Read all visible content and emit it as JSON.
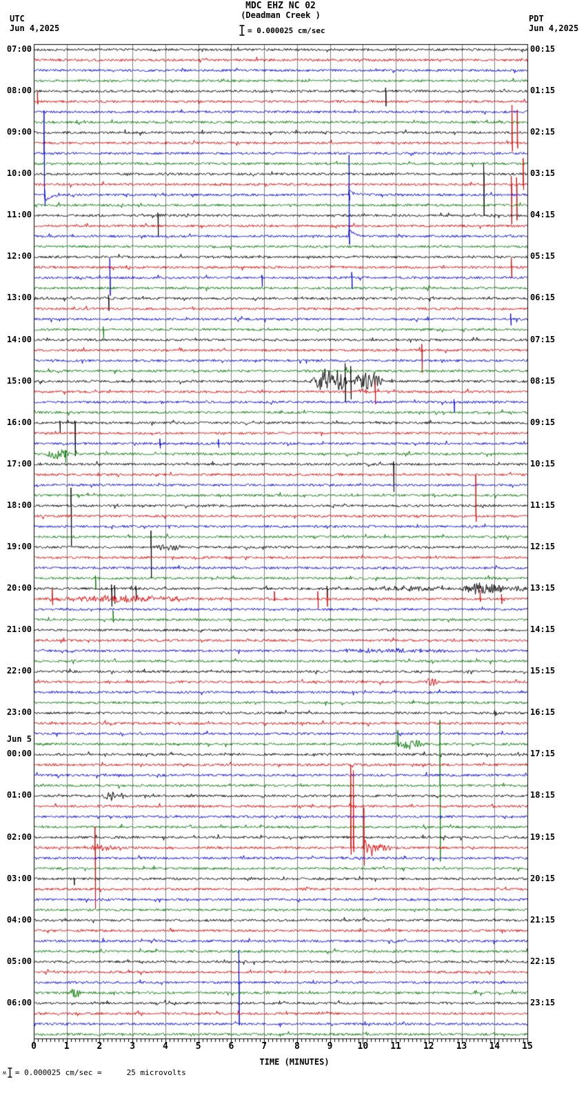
{
  "header": {
    "title": "MDC EHZ NC 02",
    "subtitle": "(Deadman Creek )",
    "scale_label": "= 0.000025 cm/sec",
    "left_tz": "UTC",
    "left_date": "Jun 4,2025",
    "right_tz": "PDT",
    "right_date": "Jun 4,2025"
  },
  "axis": {
    "xlabel": "TIME (MINUTES)",
    "minutes": [
      0,
      1,
      2,
      3,
      4,
      5,
      6,
      7,
      8,
      9,
      10,
      11,
      12,
      13,
      14,
      15
    ]
  },
  "footer": {
    "prefix": "ʍ",
    "text": "= 0.000025 cm/sec =",
    "value": "25 microvolts"
  },
  "chart_data": {
    "type": "line",
    "kind": "helicorder-seismogram",
    "station": "MDC EHZ NC 02 (Deadman Creek)",
    "x_range_minutes": [
      0,
      15
    ],
    "rows_per_hour": 4,
    "minutes_per_row": 15,
    "trace_colors": [
      "#000000",
      "#dd0000",
      "#0000dd",
      "#007700"
    ],
    "grid_color": "#7b7b7b",
    "noise_amp": 1.7,
    "hours": [
      {
        "utc": "07:00",
        "pdt": "00:15"
      },
      {
        "utc": "08:00",
        "pdt": "01:15"
      },
      {
        "utc": "09:00",
        "pdt": "02:15"
      },
      {
        "utc": "10:00",
        "pdt": "03:15"
      },
      {
        "utc": "11:00",
        "pdt": "04:15"
      },
      {
        "utc": "12:00",
        "pdt": "05:15"
      },
      {
        "utc": "13:00",
        "pdt": "06:15"
      },
      {
        "utc": "14:00",
        "pdt": "07:15"
      },
      {
        "utc": "15:00",
        "pdt": "08:15"
      },
      {
        "utc": "16:00",
        "pdt": "09:15"
      },
      {
        "utc": "17:00",
        "pdt": "10:15"
      },
      {
        "utc": "18:00",
        "pdt": "11:15"
      },
      {
        "utc": "19:00",
        "pdt": "12:15"
      },
      {
        "utc": "20:00",
        "pdt": "13:15"
      },
      {
        "utc": "21:00",
        "pdt": "14:15"
      },
      {
        "utc": "22:00",
        "pdt": "15:15"
      },
      {
        "utc": "23:00",
        "pdt": "16:15"
      },
      {
        "utc": "00:00",
        "pdt": "17:15"
      },
      {
        "utc": "01:00",
        "pdt": "18:15"
      },
      {
        "utc": "02:00",
        "pdt": "19:15"
      },
      {
        "utc": "03:00",
        "pdt": "20:15"
      },
      {
        "utc": "04:00",
        "pdt": "21:15"
      },
      {
        "utc": "05:00",
        "pdt": "22:15"
      },
      {
        "utc": "06:00",
        "pdt": "23:15"
      }
    ],
    "date_note": {
      "text": "Jun 5",
      "at_utc": "00:00"
    },
    "events": {
      "spikes": [
        {
          "r": 5,
          "t": 0.1,
          "u": 14,
          "d": 4
        },
        {
          "r": 10,
          "t": 0.3,
          "u": 62,
          "d": 58
        },
        {
          "r": 14,
          "t": 0.32,
          "u": 8,
          "d": 16,
          "tail": -10
        },
        {
          "r": 4,
          "t": 10.68,
          "u": 5,
          "d": 22
        },
        {
          "r": 9,
          "t": 14.52,
          "u": 55,
          "d": 12
        },
        {
          "r": 9,
          "t": 14.68,
          "u": 48,
          "d": 8
        },
        {
          "r": 13,
          "t": 14.5,
          "u": 12,
          "d": 58
        },
        {
          "r": 13,
          "t": 14.66,
          "u": 10,
          "d": 52
        },
        {
          "r": 13,
          "t": 14.86,
          "u": 38,
          "d": 8
        },
        {
          "r": 12,
          "t": 13.66,
          "u": 16,
          "d": 60
        },
        {
          "r": 14,
          "t": 9.57,
          "u": 14,
          "d": 8,
          "tail": 8
        },
        {
          "r": 18,
          "t": 9.57,
          "u": 118,
          "d": 12,
          "tail": 10
        },
        {
          "r": 16,
          "t": 3.76,
          "u": 4,
          "d": 30
        },
        {
          "r": 22,
          "t": 2.3,
          "u": 28,
          "d": 26
        },
        {
          "r": 22,
          "t": 6.92,
          "u": 4,
          "d": 13
        },
        {
          "r": 22,
          "t": 9.65,
          "u": 8,
          "d": 16
        },
        {
          "r": 21,
          "t": 14.5,
          "u": 13,
          "d": 15
        },
        {
          "r": 26,
          "t": 14.48,
          "u": 8,
          "d": 9
        },
        {
          "r": 24,
          "t": 2.26,
          "u": 5,
          "d": 18
        },
        {
          "r": 27,
          "t": 2.1,
          "u": 4,
          "d": 13
        },
        {
          "r": 29,
          "t": 11.78,
          "u": 9,
          "d": 33
        },
        {
          "r": 32,
          "t": 9.45,
          "u": 26,
          "d": 30
        },
        {
          "r": 32,
          "t": 9.62,
          "u": 22,
          "d": 26
        },
        {
          "r": 33,
          "t": 10.36,
          "u": 14,
          "d": 18
        },
        {
          "r": 34,
          "t": 12.76,
          "u": 4,
          "d": 15
        },
        {
          "r": 36,
          "t": 0.78,
          "u": 3,
          "d": 14
        },
        {
          "r": 36,
          "t": 1.24,
          "u": 3,
          "d": 48
        },
        {
          "r": 38,
          "t": 3.82,
          "u": 7,
          "d": 7
        },
        {
          "r": 38,
          "t": 5.6,
          "u": 6,
          "d": 6
        },
        {
          "r": 39,
          "t": 0.95,
          "u": 5,
          "d": 13
        },
        {
          "r": 40,
          "t": 10.92,
          "u": 4,
          "d": 40
        },
        {
          "r": 44,
          "t": 1.12,
          "u": 26,
          "d": 58
        },
        {
          "r": 45,
          "t": 13.42,
          "u": 60,
          "d": 8
        },
        {
          "r": 48,
          "t": 3.55,
          "u": 24,
          "d": 45
        },
        {
          "r": 51,
          "t": 1.86,
          "u": 4,
          "d": 16
        },
        {
          "r": 52,
          "t": 2.35,
          "u": 6,
          "d": 26
        },
        {
          "r": 52,
          "t": 2.44,
          "u": 5,
          "d": 22
        },
        {
          "r": 52,
          "t": 3.09,
          "u": 4,
          "d": 17
        },
        {
          "r": 52,
          "t": 8.9,
          "u": 4,
          "d": 14
        },
        {
          "r": 53,
          "t": 0.55,
          "u": 15,
          "d": 9
        },
        {
          "r": 53,
          "t": 7.3,
          "u": 11,
          "d": 3
        },
        {
          "r": 53,
          "t": 8.62,
          "u": 11,
          "d": 13
        },
        {
          "r": 53,
          "t": 8.9,
          "u": 9,
          "d": 11
        },
        {
          "r": 53,
          "t": 13.55,
          "u": 13,
          "d": 4
        },
        {
          "r": 53,
          "t": 14.2,
          "u": 7,
          "d": 7
        },
        {
          "r": 55,
          "t": 2.4,
          "u": 13,
          "d": 4
        },
        {
          "r": 67,
          "t": 11.05,
          "u": 20,
          "d": 4
        },
        {
          "r": 71,
          "t": 12.33,
          "u": 95,
          "d": 110
        },
        {
          "r": 77,
          "t": 1.85,
          "u": 30,
          "d": 88
        },
        {
          "r": 77,
          "t": 9.62,
          "u": 120,
          "d": 10
        },
        {
          "r": 77,
          "t": 9.7,
          "u": 112,
          "d": 6
        },
        {
          "r": 77,
          "t": 10.02,
          "u": 58,
          "d": 26,
          "osc": 14
        },
        {
          "r": 80,
          "t": 1.21,
          "u": 2,
          "d": 9
        },
        {
          "r": 90,
          "t": 6.22,
          "u": 47,
          "d": 62
        }
      ],
      "bursts": [
        {
          "r": 31,
          "t0": 9.35,
          "t1": 9.75,
          "a": 3
        },
        {
          "r": 32,
          "t0": 8.35,
          "t1": 9.6,
          "a": 20
        },
        {
          "r": 32,
          "t0": 9.55,
          "t1": 10.7,
          "a": 12
        },
        {
          "r": 33,
          "t0": 9.6,
          "t1": 10.3,
          "a": 3.5
        },
        {
          "r": 39,
          "t0": 0.25,
          "t1": 1.15,
          "a": 8
        },
        {
          "r": 48,
          "t0": 3.45,
          "t1": 4.7,
          "a": 3.5
        },
        {
          "r": 52,
          "t0": 9.8,
          "t1": 12.8,
          "a": 3.5
        },
        {
          "r": 52,
          "t0": 12.8,
          "t1": 14.6,
          "a": 8
        },
        {
          "r": 52,
          "t0": 14.55,
          "t1": 15.0,
          "a": 5
        },
        {
          "r": 53,
          "t0": 0.05,
          "t1": 5.5,
          "a": 4.5
        },
        {
          "r": 58,
          "t0": 9.0,
          "t1": 13.0,
          "a": 2.5
        },
        {
          "r": 61,
          "t0": 11.8,
          "t1": 12.35,
          "a": 6
        },
        {
          "r": 67,
          "t0": 10.85,
          "t1": 11.95,
          "a": 8
        },
        {
          "r": 72,
          "t0": 2.05,
          "t1": 2.65,
          "a": 7
        },
        {
          "r": 77,
          "t0": 1.4,
          "t1": 2.6,
          "a": 3.5
        },
        {
          "r": 77,
          "t0": 9.9,
          "t1": 10.9,
          "a": 8
        },
        {
          "r": 91,
          "t0": 1.05,
          "t1": 1.45,
          "a": 7
        }
      ]
    }
  }
}
